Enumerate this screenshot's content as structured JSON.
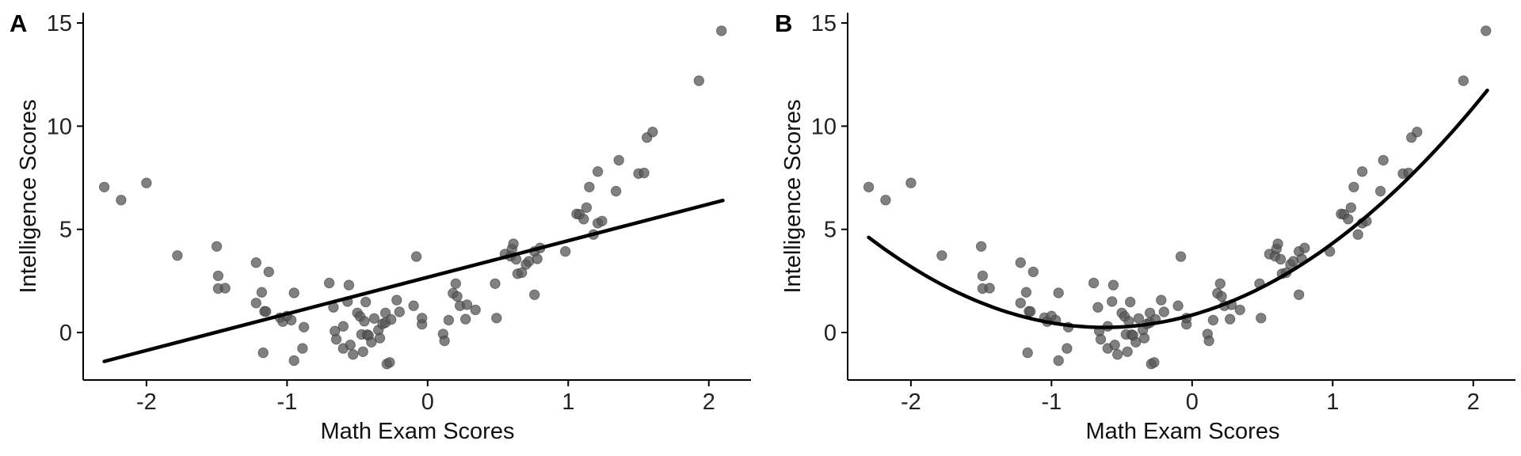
{
  "chart_data": [
    {
      "type": "scatter",
      "panel_label": "A",
      "fit": "linear",
      "xlabel": "Math Exam Scores",
      "ylabel": "Intelligence Scores",
      "xlim": [
        -2.45,
        2.3
      ],
      "ylim": [
        -2.3,
        15.5
      ],
      "xticks": [
        -2,
        -1,
        0,
        1,
        2
      ],
      "xtick_labels": [
        "-2",
        "-1",
        "0",
        "1",
        "2"
      ],
      "yticks": [
        0,
        5,
        10,
        15
      ],
      "ytick_labels": [
        "0",
        "5",
        "10",
        "15"
      ],
      "fit_line": {
        "x": [
          -2.3,
          2.1
        ],
        "y": [
          -1.4,
          6.4
        ]
      },
      "points": [
        [
          -2.3,
          7.05
        ],
        [
          -2.18,
          6.42
        ],
        [
          -2.0,
          7.25
        ],
        [
          -1.78,
          3.73
        ],
        [
          -1.5,
          4.17
        ],
        [
          -1.49,
          2.75
        ],
        [
          -1.49,
          2.13
        ],
        [
          -1.44,
          2.15
        ],
        [
          -1.22,
          3.39
        ],
        [
          -1.22,
          1.43
        ],
        [
          -1.18,
          1.95
        ],
        [
          -1.16,
          1.03
        ],
        [
          -1.15,
          1.02
        ],
        [
          -1.13,
          2.94
        ],
        [
          -1.17,
          -0.98
        ],
        [
          -1.05,
          0.72
        ],
        [
          -1.03,
          0.53
        ],
        [
          -1.0,
          0.8
        ],
        [
          -0.97,
          0.6
        ],
        [
          -0.95,
          1.92
        ],
        [
          -0.95,
          -1.36
        ],
        [
          -0.89,
          -0.77
        ],
        [
          -0.88,
          0.26
        ],
        [
          -0.7,
          2.4
        ],
        [
          -0.67,
          1.22
        ],
        [
          -0.66,
          0.07
        ],
        [
          -0.65,
          -0.33
        ],
        [
          -0.6,
          -0.77
        ],
        [
          -0.6,
          0.3
        ],
        [
          -0.57,
          1.5
        ],
        [
          -0.56,
          2.3
        ],
        [
          -0.55,
          -0.6
        ],
        [
          -0.53,
          -1.06
        ],
        [
          -0.5,
          0.95
        ],
        [
          -0.48,
          0.78
        ],
        [
          -0.47,
          -0.09
        ],
        [
          -0.46,
          -0.93
        ],
        [
          -0.45,
          0.55
        ],
        [
          -0.44,
          1.48
        ],
        [
          -0.43,
          -0.1
        ],
        [
          -0.42,
          -0.14
        ],
        [
          -0.4,
          -0.47
        ],
        [
          -0.38,
          0.68
        ],
        [
          -0.35,
          0.12
        ],
        [
          -0.34,
          -0.27
        ],
        [
          -0.32,
          0.42
        ],
        [
          -0.3,
          0.48
        ],
        [
          -0.3,
          0.95
        ],
        [
          -0.29,
          -1.52
        ],
        [
          -0.27,
          -1.45
        ],
        [
          -0.26,
          0.63
        ],
        [
          -0.22,
          1.57
        ],
        [
          -0.2,
          1.0
        ],
        [
          -0.1,
          1.3
        ],
        [
          -0.08,
          3.68
        ],
        [
          -0.04,
          0.4
        ],
        [
          -0.04,
          0.7
        ],
        [
          0.11,
          -0.07
        ],
        [
          0.12,
          -0.4
        ],
        [
          0.15,
          0.6
        ],
        [
          0.18,
          1.9
        ],
        [
          0.2,
          2.37
        ],
        [
          0.21,
          1.75
        ],
        [
          0.23,
          1.3
        ],
        [
          0.27,
          0.65
        ],
        [
          0.28,
          1.35
        ],
        [
          0.34,
          1.1
        ],
        [
          0.48,
          2.37
        ],
        [
          0.49,
          0.7
        ],
        [
          0.55,
          3.8
        ],
        [
          0.59,
          3.7
        ],
        [
          0.6,
          4.05
        ],
        [
          0.61,
          4.3
        ],
        [
          0.63,
          3.55
        ],
        [
          0.64,
          2.85
        ],
        [
          0.67,
          2.9
        ],
        [
          0.7,
          3.3
        ],
        [
          0.72,
          3.45
        ],
        [
          0.76,
          3.93
        ],
        [
          0.76,
          1.83
        ],
        [
          0.78,
          3.57
        ],
        [
          0.8,
          4.1
        ],
        [
          0.98,
          3.93
        ],
        [
          1.06,
          5.75
        ],
        [
          1.08,
          5.73
        ],
        [
          1.11,
          5.5
        ],
        [
          1.13,
          6.05
        ],
        [
          1.15,
          7.05
        ],
        [
          1.18,
          4.75
        ],
        [
          1.21,
          7.8
        ],
        [
          1.21,
          5.3
        ],
        [
          1.24,
          5.4
        ],
        [
          1.36,
          8.35
        ],
        [
          1.34,
          6.85
        ],
        [
          1.5,
          7.7
        ],
        [
          1.54,
          7.73
        ],
        [
          1.56,
          9.45
        ],
        [
          1.6,
          9.72
        ],
        [
          1.93,
          12.2
        ],
        [
          2.09,
          14.62
        ]
      ]
    },
    {
      "type": "scatter",
      "panel_label": "B",
      "fit": "quadratic",
      "xlabel": "Math Exam Scores",
      "ylabel": "Intelligence Scores",
      "xlim": [
        -2.45,
        2.3
      ],
      "ylim": [
        -2.3,
        15.5
      ],
      "xticks": [
        -2,
        -1,
        0,
        1,
        2
      ],
      "xtick_labels": [
        "-2",
        "-1",
        "0",
        "1",
        "2"
      ],
      "yticks": [
        0,
        5,
        10,
        15
      ],
      "yticks_labels_note": "",
      "ytick_labels": [
        "0",
        "5",
        "10",
        "15"
      ],
      "fit_curve": {
        "x_range": [
          -2.3,
          2.1
        ],
        "coefficients": [
          1.55,
          1.93,
          0.85
        ]
      },
      "points": [
        [
          -2.3,
          7.05
        ],
        [
          -2.18,
          6.42
        ],
        [
          -2.0,
          7.25
        ],
        [
          -1.78,
          3.73
        ],
        [
          -1.5,
          4.17
        ],
        [
          -1.49,
          2.75
        ],
        [
          -1.49,
          2.13
        ],
        [
          -1.44,
          2.15
        ],
        [
          -1.22,
          3.39
        ],
        [
          -1.22,
          1.43
        ],
        [
          -1.18,
          1.95
        ],
        [
          -1.16,
          1.03
        ],
        [
          -1.15,
          1.02
        ],
        [
          -1.13,
          2.94
        ],
        [
          -1.17,
          -0.98
        ],
        [
          -1.05,
          0.72
        ],
        [
          -1.03,
          0.53
        ],
        [
          -1.0,
          0.8
        ],
        [
          -0.97,
          0.6
        ],
        [
          -0.95,
          1.92
        ],
        [
          -0.95,
          -1.36
        ],
        [
          -0.89,
          -0.77
        ],
        [
          -0.88,
          0.26
        ],
        [
          -0.7,
          2.4
        ],
        [
          -0.67,
          1.22
        ],
        [
          -0.66,
          0.07
        ],
        [
          -0.65,
          -0.33
        ],
        [
          -0.6,
          -0.77
        ],
        [
          -0.6,
          0.3
        ],
        [
          -0.57,
          1.5
        ],
        [
          -0.56,
          2.3
        ],
        [
          -0.55,
          -0.6
        ],
        [
          -0.53,
          -1.06
        ],
        [
          -0.5,
          0.95
        ],
        [
          -0.48,
          0.78
        ],
        [
          -0.47,
          -0.09
        ],
        [
          -0.46,
          -0.93
        ],
        [
          -0.45,
          0.55
        ],
        [
          -0.44,
          1.48
        ],
        [
          -0.43,
          -0.1
        ],
        [
          -0.42,
          -0.14
        ],
        [
          -0.4,
          -0.47
        ],
        [
          -0.38,
          0.68
        ],
        [
          -0.35,
          0.12
        ],
        [
          -0.34,
          -0.27
        ],
        [
          -0.32,
          0.42
        ],
        [
          -0.3,
          0.48
        ],
        [
          -0.3,
          0.95
        ],
        [
          -0.29,
          -1.52
        ],
        [
          -0.27,
          -1.45
        ],
        [
          -0.26,
          0.63
        ],
        [
          -0.22,
          1.57
        ],
        [
          -0.2,
          1.0
        ],
        [
          -0.1,
          1.3
        ],
        [
          -0.08,
          3.68
        ],
        [
          -0.04,
          0.4
        ],
        [
          -0.04,
          0.7
        ],
        [
          0.11,
          -0.07
        ],
        [
          0.12,
          -0.4
        ],
        [
          0.15,
          0.6
        ],
        [
          0.18,
          1.9
        ],
        [
          0.2,
          2.37
        ],
        [
          0.21,
          1.75
        ],
        [
          0.23,
          1.3
        ],
        [
          0.27,
          0.65
        ],
        [
          0.28,
          1.35
        ],
        [
          0.34,
          1.1
        ],
        [
          0.48,
          2.37
        ],
        [
          0.49,
          0.7
        ],
        [
          0.55,
          3.8
        ],
        [
          0.59,
          3.7
        ],
        [
          0.6,
          4.05
        ],
        [
          0.61,
          4.3
        ],
        [
          0.63,
          3.55
        ],
        [
          0.64,
          2.85
        ],
        [
          0.67,
          2.9
        ],
        [
          0.7,
          3.3
        ],
        [
          0.72,
          3.45
        ],
        [
          0.76,
          3.93
        ],
        [
          0.76,
          1.83
        ],
        [
          0.78,
          3.57
        ],
        [
          0.8,
          4.1
        ],
        [
          0.98,
          3.93
        ],
        [
          1.06,
          5.75
        ],
        [
          1.08,
          5.73
        ],
        [
          1.11,
          5.5
        ],
        [
          1.13,
          6.05
        ],
        [
          1.15,
          7.05
        ],
        [
          1.18,
          4.75
        ],
        [
          1.21,
          7.8
        ],
        [
          1.21,
          5.3
        ],
        [
          1.24,
          5.4
        ],
        [
          1.36,
          8.35
        ],
        [
          1.34,
          6.85
        ],
        [
          1.5,
          7.7
        ],
        [
          1.54,
          7.73
        ],
        [
          1.56,
          9.45
        ],
        [
          1.6,
          9.72
        ],
        [
          1.93,
          12.2
        ],
        [
          2.09,
          14.62
        ]
      ]
    }
  ],
  "colors": {
    "point_fill": "#555555",
    "line": "#000000",
    "axis": "#000000",
    "background": "#ffffff"
  }
}
